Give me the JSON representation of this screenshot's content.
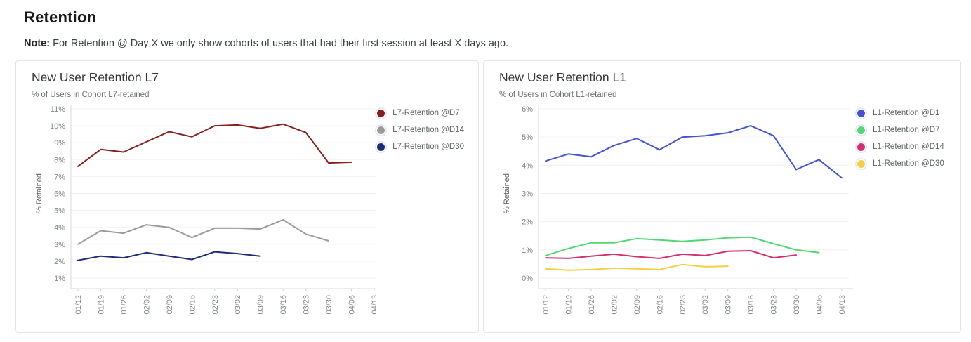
{
  "page": {
    "title": "Retention",
    "note_label": "Note:",
    "note_text": " For Retention @ Day X we only show cohorts of users that had their first session at least X days ago."
  },
  "colors": {
    "grid": "#f3f0f2",
    "axis": "#d9dadd",
    "tick": "#cdd0d4",
    "tick_label": "#80868b",
    "axis_title": "#5b5f63"
  },
  "chart_data": [
    {
      "type": "line",
      "title": "New User Retention L7",
      "subtitle": "% of Users in Cohort L7-retained",
      "ylabel": "% Retained",
      "xlabel": "",
      "ylim": [
        1,
        11
      ],
      "ytick_labels": [
        "1%",
        "2%",
        "3%",
        "4%",
        "5%",
        "6%",
        "7%",
        "8%",
        "9%",
        "10%",
        "11%"
      ],
      "grid": true,
      "legend_position": "right",
      "categories": [
        "01/12",
        "01/19",
        "01/26",
        "02/02",
        "02/09",
        "02/16",
        "02/23",
        "03/02",
        "03/09",
        "03/16",
        "03/23",
        "03/30",
        "04/06",
        "04/13"
      ],
      "series": [
        {
          "name": "L7-Retention @D7",
          "color": "#85201d",
          "values": [
            7.6,
            8.6,
            8.45,
            9.05,
            9.65,
            9.35,
            10.0,
            10.05,
            9.85,
            10.1,
            9.6,
            7.8,
            7.85,
            null
          ]
        },
        {
          "name": "L7-Retention @D14",
          "color": "#9b9b9b",
          "values": [
            3.0,
            3.8,
            3.65,
            4.15,
            4.0,
            3.4,
            3.95,
            3.95,
            3.9,
            4.45,
            3.6,
            3.2,
            null,
            null
          ]
        },
        {
          "name": "L7-Retention @D30",
          "color": "#1f2c74",
          "values": [
            2.05,
            2.3,
            2.2,
            2.5,
            2.3,
            2.1,
            2.55,
            2.45,
            2.3,
            null,
            null,
            null,
            null,
            null
          ]
        }
      ]
    },
    {
      "type": "line",
      "title": "New User Retention L1",
      "subtitle": "% of Users in Cohort L1-retained",
      "ylabel": "% Retained",
      "xlabel": "",
      "ylim": [
        0,
        6
      ],
      "ytick_labels": [
        "0%",
        "1%",
        "2%",
        "3%",
        "4%",
        "5%",
        "6%"
      ],
      "grid": true,
      "legend_position": "right",
      "categories": [
        "01/12",
        "01/19",
        "01/26",
        "02/02",
        "02/09",
        "02/16",
        "02/23",
        "03/02",
        "03/09",
        "03/16",
        "03/23",
        "03/30",
        "04/06",
        "04/13"
      ],
      "series": [
        {
          "name": "L1-Retention @D1",
          "color": "#4653cd",
          "values": [
            4.15,
            4.4,
            4.3,
            4.7,
            4.95,
            4.55,
            5.0,
            5.05,
            5.15,
            5.4,
            5.05,
            3.85,
            4.2,
            3.55
          ]
        },
        {
          "name": "L1-Retention @D7",
          "color": "#53d674",
          "values": [
            0.8,
            1.05,
            1.25,
            1.25,
            1.4,
            1.35,
            1.3,
            1.35,
            1.43,
            1.45,
            1.22,
            1.0,
            0.9,
            null
          ]
        },
        {
          "name": "L1-Retention @D14",
          "color": "#d03173",
          "values": [
            0.72,
            0.7,
            0.78,
            0.85,
            0.76,
            0.7,
            0.85,
            0.8,
            0.95,
            0.97,
            0.72,
            0.82,
            null,
            null
          ]
        },
        {
          "name": "L1-Retention @D30",
          "color": "#f2cf43",
          "values": [
            0.33,
            0.28,
            0.3,
            0.35,
            0.33,
            0.3,
            0.48,
            0.4,
            0.42,
            null,
            null,
            null,
            null,
            null
          ]
        }
      ]
    }
  ]
}
